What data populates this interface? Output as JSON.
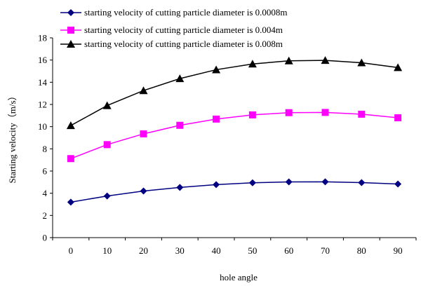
{
  "chart_data": {
    "type": "line",
    "title": "",
    "xlabel": "hole angle",
    "ylabel": "Starting velocity（m/s）",
    "x": [
      0,
      10,
      20,
      30,
      40,
      50,
      60,
      70,
      80,
      90
    ],
    "x_tick_labels": [
      "0",
      "10",
      "20",
      "30",
      "40",
      "50",
      "60",
      "70",
      "80",
      "90"
    ],
    "y_tick_labels": [
      "0",
      "2",
      "4",
      "6",
      "8",
      "10",
      "12",
      "14",
      "16",
      "18"
    ],
    "ylim": [
      0,
      18
    ],
    "grid": false,
    "legend_position": "top",
    "series": [
      {
        "name": "starting velocity of cutting particle diameter is 0.0008m",
        "color": "#000080",
        "marker": "diamond",
        "values": [
          3.2,
          3.75,
          4.2,
          4.52,
          4.78,
          4.94,
          5.02,
          5.03,
          4.96,
          4.83
        ]
      },
      {
        "name": "starting velocity of cutting particle diameter is 0.004m",
        "color": "#ff00ff",
        "marker": "square",
        "values": [
          7.12,
          8.38,
          9.35,
          10.12,
          10.68,
          11.06,
          11.26,
          11.28,
          11.12,
          10.8
        ]
      },
      {
        "name": "starting velocity of cutting particle diameter is 0.008m",
        "color": "#000000",
        "marker": "triangle",
        "values": [
          10.1,
          11.9,
          13.25,
          14.33,
          15.13,
          15.65,
          15.93,
          15.97,
          15.76,
          15.32
        ]
      }
    ]
  }
}
